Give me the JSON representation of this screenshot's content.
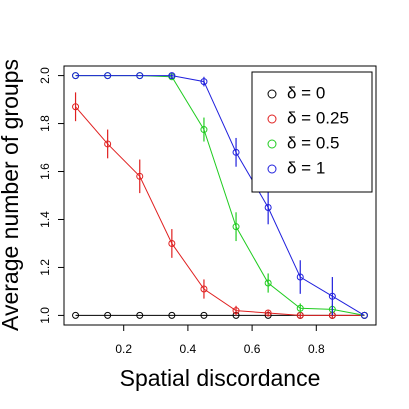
{
  "chart_data": {
    "type": "line",
    "xlabel": "Spatial discordance",
    "ylabel": "Average number of groups",
    "x": [
      0.05,
      0.15,
      0.25,
      0.35,
      0.45,
      0.55,
      0.65,
      0.75,
      0.85,
      0.95
    ],
    "series": [
      {
        "name": "δ = 0",
        "color": "#000000",
        "values": [
          1,
          1,
          1,
          1,
          1,
          1,
          1,
          1,
          1,
          1
        ],
        "errors": [
          0,
          0,
          0,
          0,
          0,
          0,
          0,
          0,
          0,
          0
        ]
      },
      {
        "name": "δ = 0.25",
        "color": "#e02020",
        "values": [
          1.87,
          1.715,
          1.58,
          1.3,
          1.11,
          1.02,
          1.01,
          1.0,
          1.0,
          1.0
        ],
        "errors": [
          0.06,
          0.06,
          0.07,
          0.06,
          0.04,
          0.02,
          0.01,
          0.01,
          0.01,
          0
        ]
      },
      {
        "name": "δ = 0.5",
        "color": "#20cc20",
        "values": [
          2.0,
          2.0,
          2.0,
          1.995,
          1.775,
          1.37,
          1.135,
          1.03,
          1.025,
          1.0
        ],
        "errors": [
          0,
          0,
          0,
          0.01,
          0.05,
          0.06,
          0.04,
          0.02,
          0.02,
          0
        ]
      },
      {
        "name": "δ = 1",
        "color": "#2020dd",
        "values": [
          2.0,
          2.0,
          2.0,
          2.0,
          1.975,
          1.68,
          1.45,
          1.16,
          1.08,
          1.0
        ],
        "errors": [
          0,
          0,
          0,
          0.01,
          0.02,
          0.06,
          0.07,
          0.07,
          0.08,
          0
        ]
      }
    ],
    "xlim": [
      0.014,
      0.986
    ],
    "ylim": [
      0.96,
      2.04
    ],
    "xticks": [
      0.2,
      0.4,
      0.6,
      0.8
    ],
    "yticks": [
      {
        "value": 1,
        "label": "1.0"
      },
      1.2,
      1.4,
      1.6,
      1.8,
      {
        "value": 2,
        "label": "2.0"
      }
    ],
    "legend": "top-right"
  }
}
